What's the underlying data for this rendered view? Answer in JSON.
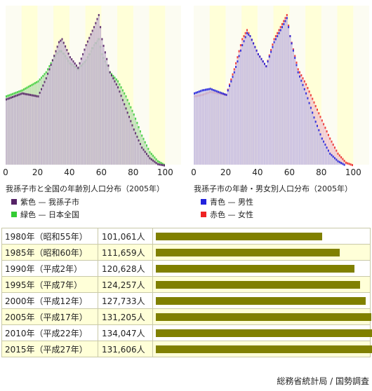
{
  "left_chart": {
    "caption": "我孫子市と全国の年齢別人口分布（2005年）",
    "legend": [
      {
        "label": "紫色 — 我孫子市",
        "color": "#552266"
      },
      {
        "label": "緑色 — 日本全国",
        "color": "#33cc33"
      }
    ]
  },
  "right_chart": {
    "caption": "我孫子市の年齢・男女別人口分布（2005年）",
    "legend": [
      {
        "label": "青色 — 男性",
        "color": "#2222dd"
      },
      {
        "label": "赤色 — 女性",
        "color": "#ee2222"
      }
    ]
  },
  "table": {
    "rows": [
      {
        "year": "1980年（昭和55年）",
        "value": "101,061人",
        "population": 101061
      },
      {
        "year": "1985年（昭和60年）",
        "value": "111,659人",
        "population": 111659
      },
      {
        "year": "1990年（平成2年）",
        "value": "120,628人",
        "population": 120628
      },
      {
        "year": "1995年（平成7年）",
        "value": "124,257人",
        "population": 124257
      },
      {
        "year": "2000年（平成12年）",
        "value": "127,733人",
        "population": 127733
      },
      {
        "year": "2005年（平成17年）",
        "value": "131,205人",
        "population": 131205
      },
      {
        "year": "2010年（平成22年）",
        "value": "134,047人",
        "population": 134047
      },
      {
        "year": "2015年（平成27年）",
        "value": "131,606人",
        "population": 131606
      }
    ]
  },
  "source": "総務省統計局 / 国勢調査",
  "chart_data": [
    {
      "type": "area",
      "x_ticks": [
        "0",
        "20",
        "40",
        "60",
        "80",
        "100"
      ],
      "xlim": [
        0,
        110
      ],
      "x": [
        0,
        5,
        10,
        15,
        20,
        25,
        30,
        33,
        35,
        40,
        45,
        50,
        55,
        58,
        60,
        65,
        70,
        75,
        80,
        85,
        90,
        95,
        100
      ],
      "series": [
        {
          "name": "我孫子市",
          "color": "#552266",
          "values": [
            0.44,
            0.46,
            0.48,
            0.47,
            0.46,
            0.58,
            0.73,
            0.82,
            0.84,
            0.72,
            0.65,
            0.8,
            0.92,
            1.0,
            0.84,
            0.62,
            0.52,
            0.38,
            0.24,
            0.12,
            0.05,
            0.01,
            0.0
          ]
        },
        {
          "name": "日本全国",
          "color": "#33cc33",
          "values": [
            0.46,
            0.48,
            0.5,
            0.53,
            0.56,
            0.62,
            0.72,
            0.76,
            0.76,
            0.68,
            0.64,
            0.7,
            0.8,
            0.84,
            0.74,
            0.62,
            0.56,
            0.46,
            0.34,
            0.2,
            0.09,
            0.03,
            0.0
          ]
        }
      ]
    },
    {
      "type": "area",
      "x_ticks": [
        "0",
        "20",
        "40",
        "60",
        "80",
        "100"
      ],
      "xlim": [
        0,
        110
      ],
      "x": [
        0,
        5,
        10,
        15,
        20,
        25,
        30,
        33,
        35,
        40,
        45,
        50,
        55,
        58,
        60,
        65,
        70,
        75,
        80,
        85,
        90,
        95,
        100
      ],
      "series": [
        {
          "name": "男性",
          "color": "#2222dd",
          "values": [
            0.48,
            0.5,
            0.51,
            0.49,
            0.47,
            0.62,
            0.8,
            0.88,
            0.86,
            0.74,
            0.66,
            0.82,
            0.92,
            0.98,
            0.86,
            0.62,
            0.48,
            0.32,
            0.18,
            0.08,
            0.03,
            0.0,
            0.0
          ]
        },
        {
          "name": "女性",
          "color": "#ee2222",
          "values": [
            0.46,
            0.47,
            0.49,
            0.48,
            0.47,
            0.64,
            0.84,
            0.9,
            0.86,
            0.74,
            0.66,
            0.84,
            0.94,
            1.0,
            0.86,
            0.64,
            0.54,
            0.42,
            0.3,
            0.18,
            0.08,
            0.02,
            0.0
          ]
        }
      ]
    }
  ]
}
